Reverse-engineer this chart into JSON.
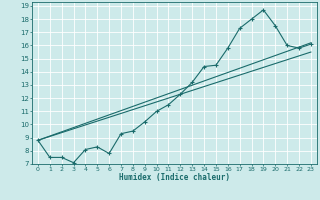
{
  "xlabel": "Humidex (Indice chaleur)",
  "background_color": "#cdeaea",
  "grid_color": "#ffffff",
  "line_color": "#1a6b6b",
  "xlim": [
    -0.5,
    23.5
  ],
  "ylim": [
    7,
    19.3
  ],
  "xticks": [
    0,
    1,
    2,
    3,
    4,
    5,
    6,
    7,
    8,
    9,
    10,
    11,
    12,
    13,
    14,
    15,
    16,
    17,
    18,
    19,
    20,
    21,
    22,
    23
  ],
  "yticks": [
    7,
    8,
    9,
    10,
    11,
    12,
    13,
    14,
    15,
    16,
    17,
    18,
    19
  ],
  "line1_x": [
    0,
    1,
    2,
    3,
    4,
    5,
    6,
    7,
    8,
    9,
    10,
    11,
    12,
    13,
    14,
    15,
    16,
    17,
    18,
    19,
    20,
    21,
    22,
    23
  ],
  "line1_y": [
    8.8,
    7.5,
    7.5,
    7.1,
    8.1,
    8.3,
    7.8,
    9.3,
    9.5,
    10.2,
    11.0,
    11.5,
    12.3,
    13.2,
    14.4,
    14.5,
    15.8,
    17.3,
    18.0,
    18.7,
    17.5,
    16.0,
    15.8,
    16.1
  ],
  "line2_x": [
    0,
    23
  ],
  "line2_y": [
    8.8,
    16.2
  ],
  "line3_x": [
    0,
    23
  ],
  "line3_y": [
    8.8,
    15.5
  ],
  "figsize": [
    3.2,
    2.0
  ],
  "dpi": 100
}
